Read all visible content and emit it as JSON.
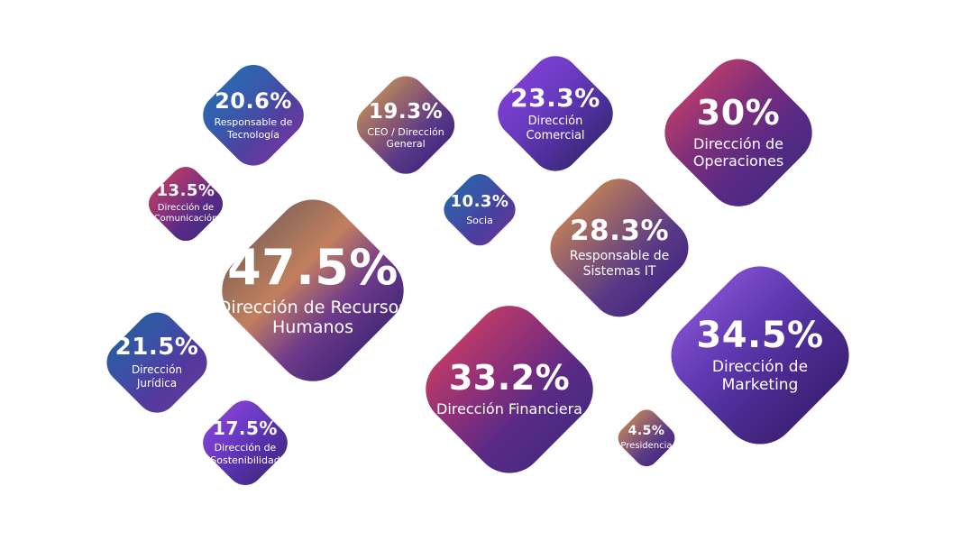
{
  "chart_data": {
    "type": "bubble",
    "items": [
      {
        "value": "47.5%",
        "label": "Dirección de Recursos\nHumanos",
        "gradient": [
          "#8f6a5a",
          "#c27f5e",
          "#6f3a8a",
          "#4a2a7a"
        ]
      },
      {
        "value": "34.5%",
        "label": "Dirección de\nMarketing",
        "gradient": [
          "#7d4cc9",
          "#5e38b0",
          "#4a2a8e",
          "#3d2278"
        ]
      },
      {
        "value": "33.2%",
        "label": "Dirección Financiera",
        "gradient": [
          "#b83a6a",
          "#8e2f78",
          "#5a2a86",
          "#4a2a80"
        ]
      },
      {
        "value": "30%",
        "label": "Dirección de\nOperaciones",
        "gradient": [
          "#b03a6e",
          "#7f2f7a",
          "#5c2a84",
          "#4a2a80"
        ]
      },
      {
        "value": "28.3%",
        "label": "Responsable de\nSistemas IT",
        "gradient": [
          "#b87a5c",
          "#8a5a70",
          "#5a3a86",
          "#4a2a80"
        ]
      },
      {
        "value": "23.3%",
        "label": "Dirección\nComercial",
        "gradient": [
          "#7c3ed0",
          "#6a3ac0",
          "#5030a0",
          "#3e2a7e"
        ]
      },
      {
        "value": "21.5%",
        "label": "Dirección\nJurídica",
        "gradient": [
          "#2d5aa0",
          "#3d4fa6",
          "#503aa0",
          "#5a3a98"
        ]
      },
      {
        "value": "20.6%",
        "label": "Responsable de\nTecnología",
        "gradient": [
          "#2d66b0",
          "#3a58aa",
          "#5040a0",
          "#6a3aa0"
        ]
      },
      {
        "value": "19.3%",
        "label": "CEO / Dirección\nGeneral",
        "gradient": [
          "#b08060",
          "#8a5a70",
          "#5a3a88",
          "#4a2a80"
        ]
      },
      {
        "value": "17.5%",
        "label": "Dirección de\nSostenibilidad",
        "gradient": [
          "#8040d0",
          "#6a3ac4",
          "#5230a6",
          "#4a2a8a"
        ]
      },
      {
        "value": "13.5%",
        "label": "Dirección de\nComunicación",
        "gradient": [
          "#b03a6a",
          "#8a327a",
          "#5a2a86",
          "#4a2a80"
        ]
      },
      {
        "value": "10.3%",
        "label": "Socia",
        "gradient": [
          "#2d5fa8",
          "#3c52a6",
          "#4a3ea0",
          "#5a3a98"
        ]
      },
      {
        "value": "4.5%",
        "label": "Presidencia",
        "gradient": [
          "#b07a60",
          "#8a5a72",
          "#5a3a86",
          "#4a2a80"
        ]
      }
    ]
  }
}
